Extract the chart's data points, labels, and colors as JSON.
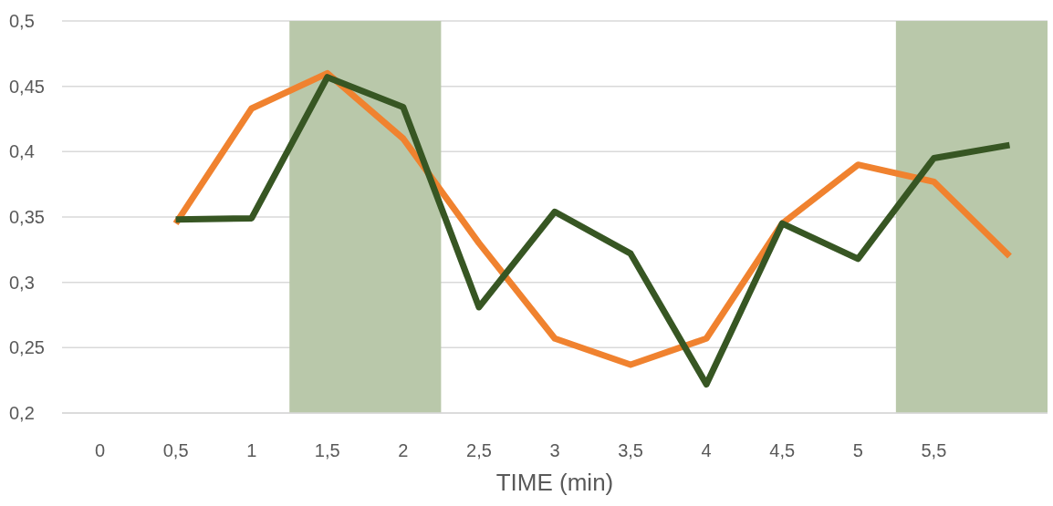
{
  "chart_data": {
    "type": "line",
    "xlabel": "TIME (min)",
    "x": [
      0.5,
      1,
      1.5,
      2,
      2.5,
      3,
      3.5,
      4,
      4.5,
      5,
      5.5,
      6
    ],
    "series": [
      {
        "color": "#f0822f",
        "values": [
          0.345,
          0.433,
          0.46,
          0.41,
          0.33,
          0.257,
          0.237,
          0.257,
          0.345,
          0.39,
          0.377,
          0.32
        ]
      },
      {
        "color": "#375623",
        "values": [
          0.348,
          0.349,
          0.457,
          0.434,
          0.281,
          0.354,
          0.322,
          0.222,
          0.345,
          0.318,
          0.395,
          0.405
        ]
      }
    ],
    "xlim": [
      -0.25,
      6.25
    ],
    "xticks": [
      0,
      {
        "value": 0.5,
        "label": "0,5"
      },
      1,
      {
        "value": 1.5,
        "label": "1,5"
      },
      2,
      {
        "value": 2.5,
        "label": "2,5"
      },
      3,
      {
        "value": 3.5,
        "label": "3,5"
      },
      4,
      {
        "value": 4.5,
        "label": "4,5"
      },
      5,
      {
        "value": 5.5,
        "label": "5,5"
      }
    ],
    "ylim": [
      0.2,
      0.5
    ],
    "yticks": [
      {
        "value": 0.2,
        "label": "0,2"
      },
      {
        "value": 0.25,
        "label": "0,25"
      },
      {
        "value": 0.3,
        "label": "0,3"
      },
      {
        "value": 0.35,
        "label": "0,35"
      },
      {
        "value": 0.4,
        "label": "0,4"
      },
      {
        "value": 0.45,
        "label": "0,45"
      },
      {
        "value": 0.5,
        "label": "0,5"
      }
    ],
    "bands": [
      {
        "axis": "x",
        "from": 1.25,
        "to": 2.25,
        "color": "#b9c8aa"
      },
      {
        "axis": "x",
        "from": 5.25,
        "to": 6.25,
        "color": "#b9c8aa"
      }
    ],
    "grid": "y",
    "line_style": "solid",
    "marker": "none"
  }
}
